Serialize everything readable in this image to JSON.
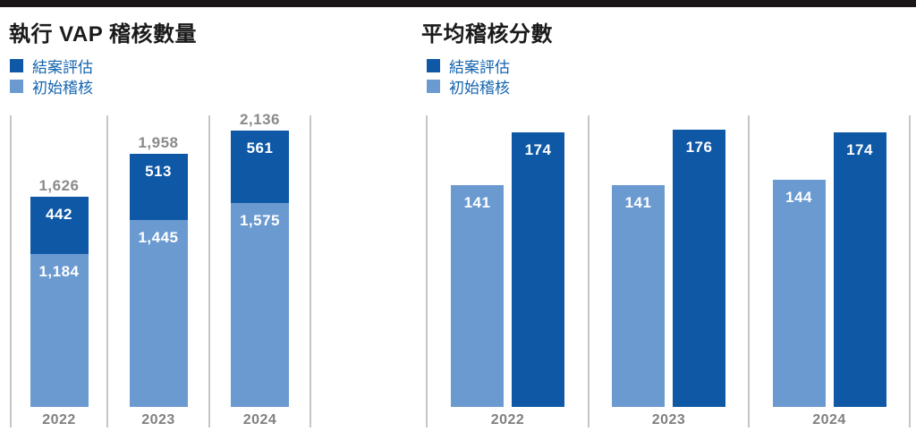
{
  "page": {
    "background": "#FFFFFF",
    "top_bar_color": "#1B1718"
  },
  "colors": {
    "dark_blue": "#0F58A6",
    "light_blue": "#6B9AD1",
    "legend_text": "#1464AE",
    "title_text": "#1A1A1A",
    "total_label": "#8A8A8D",
    "year_label": "#808083",
    "gridline": "#C6C6C8",
    "bar_value_text": "#FFFFFF"
  },
  "chart_data": [
    {
      "type": "bar",
      "variant": "stacked",
      "title": "執行 VAP 稽核數量",
      "categories": [
        "2022",
        "2023",
        "2024"
      ],
      "series": [
        {
          "name": "結案評估",
          "role": "closure-evaluation",
          "color": "#0F58A6",
          "values": [
            442,
            513,
            561
          ],
          "labels": [
            "442",
            "513",
            "561"
          ]
        },
        {
          "name": "初始稽核",
          "role": "initial-audit",
          "color": "#6B9AD1",
          "values": [
            1184,
            1445,
            1575
          ],
          "labels": [
            "1,184",
            "1,445",
            "1,575"
          ]
        }
      ],
      "totals": [
        1626,
        1958,
        2136
      ],
      "totals_display": [
        "1,626",
        "1,958",
        "2,136"
      ],
      "legend": [
        {
          "label": "結案評估",
          "color": "#0F58A6"
        },
        {
          "label": "初始稽核",
          "color": "#6B9AD1"
        }
      ],
      "layout_hints": {
        "y_min": 0,
        "gridlines": "vertical category separators",
        "value_labels": "inside segments",
        "total_labels": "above bars",
        "legend_position": "top-left"
      }
    },
    {
      "type": "bar",
      "variant": "grouped",
      "title": "平均稽核分數",
      "categories": [
        "2022",
        "2023",
        "2024"
      ],
      "series": [
        {
          "name": "結案評估",
          "role": "closure-evaluation",
          "color": "#0F58A6",
          "values": [
            174,
            176,
            174
          ],
          "labels": [
            "174",
            "176",
            "174"
          ]
        },
        {
          "name": "初始稽核",
          "role": "initial-audit",
          "color": "#6B9AD1",
          "values": [
            141,
            141,
            144
          ],
          "labels": [
            "141",
            "141",
            "144"
          ]
        }
      ],
      "legend": [
        {
          "label": "結案評估",
          "color": "#0F58A6"
        },
        {
          "label": "初始稽核",
          "color": "#6B9AD1"
        }
      ],
      "layout_hints": {
        "y_min": 0,
        "gridlines": "vertical category separators",
        "value_labels": "inside bars near top",
        "bar_order_left_to_right": [
          "初始稽核",
          "結案評估"
        ],
        "legend_position": "top-left"
      }
    }
  ]
}
